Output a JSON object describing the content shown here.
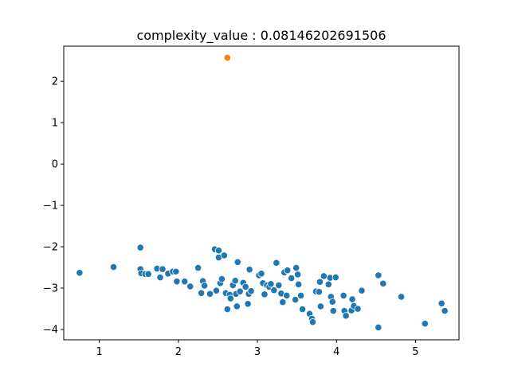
{
  "chart_data": {
    "type": "scatter",
    "title": "complexity_value : 0.08146202691506",
    "xlabel": "",
    "ylabel": "",
    "xlim": [
      0.55,
      5.55
    ],
    "ylim": [
      -4.25,
      2.85
    ],
    "xticks": [
      1,
      2,
      3,
      4,
      5
    ],
    "yticks": [
      -4,
      -3,
      -2,
      -1,
      0,
      1,
      2
    ],
    "ytick_labels": [
      "−4",
      "−3",
      "−2",
      "−1",
      "0",
      "1",
      "2"
    ],
    "grid": false,
    "series": [
      {
        "color": "#1f77b4",
        "points": [
          [
            0.75,
            -2.63
          ],
          [
            1.18,
            -2.49
          ],
          [
            1.52,
            -2.02
          ],
          [
            1.52,
            -2.54
          ],
          [
            1.53,
            -2.64
          ],
          [
            1.58,
            -2.66
          ],
          [
            1.62,
            -2.66
          ],
          [
            1.73,
            -2.53
          ],
          [
            1.77,
            -2.74
          ],
          [
            1.8,
            -2.54
          ],
          [
            1.87,
            -2.65
          ],
          [
            1.93,
            -2.6
          ],
          [
            1.97,
            -2.6
          ],
          [
            1.98,
            -2.84
          ],
          [
            2.08,
            -2.84
          ],
          [
            2.15,
            -2.96
          ],
          [
            2.25,
            -2.51
          ],
          [
            2.29,
            -3.12
          ],
          [
            2.31,
            -2.83
          ],
          [
            2.33,
            -2.94
          ],
          [
            2.4,
            -3.14
          ],
          [
            2.46,
            -2.06
          ],
          [
            2.48,
            -3.06
          ],
          [
            2.51,
            -2.09
          ],
          [
            2.51,
            -2.26
          ],
          [
            2.53,
            -2.88
          ],
          [
            2.55,
            -2.78
          ],
          [
            2.58,
            -2.21
          ],
          [
            2.6,
            -3.12
          ],
          [
            2.62,
            -3.51
          ],
          [
            2.65,
            -3.16
          ],
          [
            2.66,
            -3.25
          ],
          [
            2.69,
            -2.93
          ],
          [
            2.72,
            -2.82
          ],
          [
            2.73,
            -3.14
          ],
          [
            2.74,
            -3.44
          ],
          [
            2.75,
            -2.37
          ],
          [
            2.78,
            -3.08
          ],
          [
            2.82,
            -2.87
          ],
          [
            2.85,
            -2.97
          ],
          [
            2.88,
            -3.38
          ],
          [
            2.89,
            -3.14
          ],
          [
            2.9,
            -2.55
          ],
          [
            2.92,
            -3.07
          ],
          [
            3.02,
            -2.69
          ],
          [
            3.05,
            -2.65
          ],
          [
            3.07,
            -2.88
          ],
          [
            3.09,
            -3.15
          ],
          [
            3.12,
            -2.93
          ],
          [
            3.15,
            -2.97
          ],
          [
            3.17,
            -2.9
          ],
          [
            3.21,
            -3.05
          ],
          [
            3.24,
            -2.39
          ],
          [
            3.27,
            -2.93
          ],
          [
            3.3,
            -3.13
          ],
          [
            3.32,
            -3.34
          ],
          [
            3.34,
            -2.62
          ],
          [
            3.37,
            -3.18
          ],
          [
            3.38,
            -2.57
          ],
          [
            3.43,
            -2.76
          ],
          [
            3.48,
            -3.28
          ],
          [
            3.49,
            -2.51
          ],
          [
            3.51,
            -2.67
          ],
          [
            3.52,
            -2.91
          ],
          [
            3.55,
            -3.18
          ],
          [
            3.57,
            -3.51
          ],
          [
            3.66,
            -3.62
          ],
          [
            3.69,
            -3.74
          ],
          [
            3.7,
            -3.82
          ],
          [
            3.74,
            -3.08
          ],
          [
            3.78,
            -3.09
          ],
          [
            3.79,
            -2.85
          ],
          [
            3.8,
            -3.44
          ],
          [
            3.84,
            -2.71
          ],
          [
            3.9,
            -2.91
          ],
          [
            3.92,
            -2.75
          ],
          [
            3.93,
            -3.21
          ],
          [
            3.95,
            -3.33
          ],
          [
            3.96,
            -3.55
          ],
          [
            3.99,
            -2.74
          ],
          [
            4.09,
            -3.18
          ],
          [
            4.1,
            -3.55
          ],
          [
            4.12,
            -3.67
          ],
          [
            4.19,
            -3.54
          ],
          [
            4.2,
            -3.27
          ],
          [
            4.22,
            -3.43
          ],
          [
            4.27,
            -3.5
          ],
          [
            4.32,
            -3.06
          ],
          [
            4.53,
            -2.69
          ],
          [
            4.53,
            -3.95
          ],
          [
            4.59,
            -2.89
          ],
          [
            4.82,
            -3.21
          ],
          [
            5.12,
            -3.86
          ],
          [
            5.33,
            -3.37
          ],
          [
            5.37,
            -3.55
          ]
        ]
      },
      {
        "color": "#ff7f0e",
        "points": [
          [
            2.62,
            2.57
          ]
        ]
      }
    ]
  }
}
